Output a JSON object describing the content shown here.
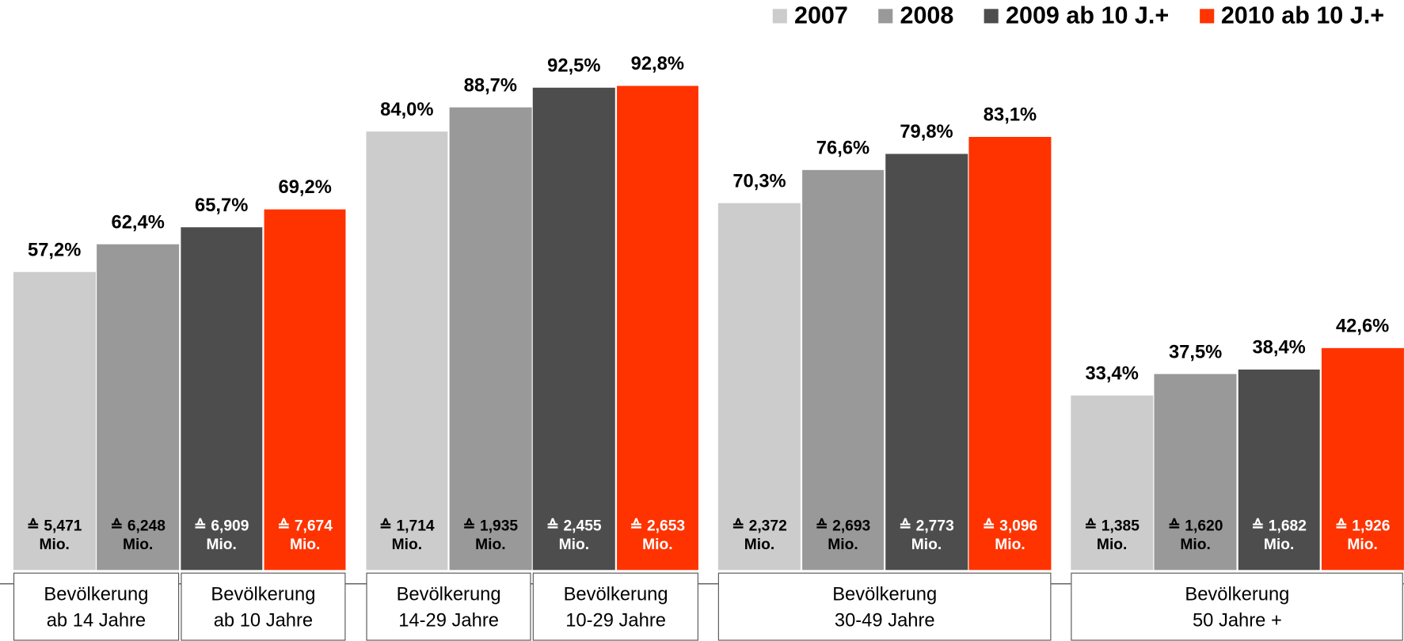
{
  "chart_data": {
    "type": "bar",
    "series": [
      {
        "name": "2007",
        "color": "#cccccc",
        "values": [
          57.2,
          84.0,
          70.3,
          33.4
        ],
        "value_labels": [
          "57,2%",
          "84,0%",
          "70,3%",
          "33,4%"
        ],
        "populations": [
          5.471,
          1.714,
          2.372,
          1.385
        ],
        "population_labels": [
          "≙ 5,471 Mio.",
          "≙ 1,714 Mio.",
          "≙ 2,372 Mio.",
          "≙ 1,385 Mio."
        ]
      },
      {
        "name": "2008",
        "color": "#999999",
        "values": [
          62.4,
          88.7,
          76.6,
          37.5
        ],
        "value_labels": [
          "62,4%",
          "88,7%",
          "76,6%",
          "37,5%"
        ],
        "populations": [
          6.248,
          1.935,
          2.693,
          1.62
        ],
        "population_labels": [
          "≙ 6,248 Mio.",
          "≙ 1,935 Mio.",
          "≙ 2,693 Mio.",
          "≙ 1,620 Mio."
        ]
      },
      {
        "name": "2009 ab 10 J.+",
        "color": "#4d4d4d",
        "values": [
          65.7,
          92.5,
          79.8,
          38.4
        ],
        "value_labels": [
          "65,7%",
          "92,5%",
          "79,8%",
          "38,4%"
        ],
        "populations": [
          6.909,
          2.455,
          2.773,
          1.682
        ],
        "population_labels": [
          "≙ 6,909 Mio.",
          "≙ 2,455 Mio.",
          "≙ 2,773 Mio.",
          "≙ 1,682 Mio."
        ]
      },
      {
        "name": "2010 ab 10 J.+",
        "color": "#ff3300",
        "values": [
          69.2,
          92.8,
          83.1,
          42.6
        ],
        "value_labels": [
          "69,2%",
          "92,8%",
          "83,1%",
          "42,6%"
        ],
        "populations": [
          7.674,
          2.653,
          3.096,
          1.926
        ],
        "population_labels": [
          "≙ 7,674 Mio.",
          "≙ 2,653 Mio.",
          "≙ 3,096 Mio.",
          "≙ 1,926 Mio."
        ]
      }
    ],
    "groups": [
      {
        "boxes": [
          [
            "Bevölkerung",
            "ab 14 Jahre"
          ],
          [
            "Bevölkerung",
            "ab 10 Jahre"
          ]
        ]
      },
      {
        "boxes": [
          [
            "Bevölkerung",
            "14-29 Jahre"
          ],
          [
            "Bevölkerung",
            "10-29 Jahre"
          ]
        ]
      },
      {
        "boxes": [
          [
            "Bevölkerung",
            "30-49 Jahre"
          ]
        ]
      },
      {
        "boxes": [
          [
            "Bevölkerung",
            "50 Jahre +"
          ]
        ]
      }
    ],
    "ylim": [
      0,
      100
    ]
  }
}
